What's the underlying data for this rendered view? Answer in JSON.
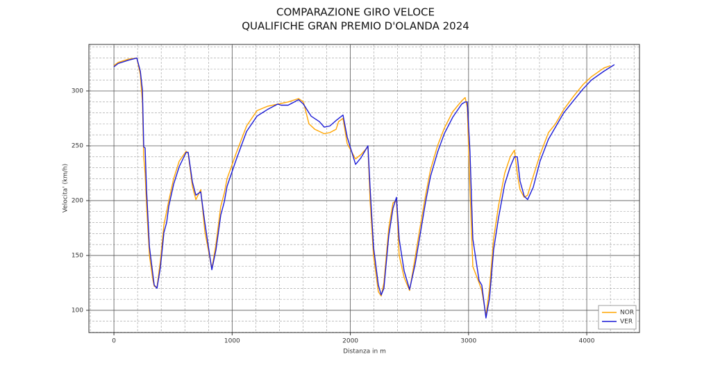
{
  "chart_data": {
    "type": "line",
    "title": "COMPARAZIONE GIRO VELOCE",
    "subtitle": "QUALIFICHE GRAN PREMIO D'OLANDA 2024",
    "xlabel": "Distanza in m",
    "ylabel": "Velocita' (km/h)",
    "xlim": [
      -212,
      4446
    ],
    "ylim": [
      79.7,
      342.4
    ],
    "xticks": [
      0,
      1000,
      2000,
      3000,
      4000
    ],
    "yticks": [
      100,
      150,
      200,
      250,
      300
    ],
    "minor_xticks": [
      -200,
      200,
      400,
      600,
      800,
      1200,
      1400,
      1600,
      1800,
      2200,
      2400,
      2600,
      2800,
      3200,
      3400,
      3600,
      3800,
      4200,
      4400
    ],
    "minor_yticks": [
      80,
      90,
      110,
      120,
      130,
      140,
      160,
      170,
      180,
      190,
      210,
      220,
      230,
      240,
      260,
      270,
      280,
      290,
      310,
      320,
      330,
      340
    ],
    "grid": true,
    "legend": "lower right",
    "series": [
      {
        "name": "NOR",
        "color": "#ffa500",
        "x": [
          0,
          35,
          123,
          194,
          223,
          241,
          252,
          264,
          276,
          300,
          329,
          341,
          364,
          393,
          423,
          446,
          464,
          505,
          552,
          611,
          628,
          664,
          693,
          734,
          769,
          828,
          863,
          904,
          934,
          957,
          1033,
          1122,
          1210,
          1298,
          1386,
          1474,
          1562,
          1603,
          1650,
          1700,
          1779,
          1826,
          1879,
          1900,
          1938,
          1973,
          2044,
          2090,
          2149,
          2167,
          2196,
          2237,
          2261,
          2284,
          2325,
          2361,
          2390,
          2413,
          2455,
          2501,
          2548,
          2584,
          2637,
          2678,
          2737,
          2795,
          2866,
          2942,
          2971,
          2989,
          3012,
          3036,
          3089,
          3112,
          3147,
          3177,
          3212,
          3253,
          3306,
          3353,
          3388,
          3412,
          3435,
          3471,
          3500,
          3547,
          3605,
          3676,
          3735,
          3805,
          3887,
          3970,
          4040,
          4146,
          4200
        ],
        "values": [
          323,
          326,
          329,
          330,
          315,
          290,
          240,
          225,
          195,
          150,
          128,
          122,
          121,
          145,
          178,
          190,
          200,
          220,
          236,
          245,
          243,
          213,
          201,
          210,
          172,
          138,
          160,
          195,
          207,
          220,
          243,
          268,
          282,
          286,
          288,
          290,
          293,
          290,
          270,
          265,
          261,
          262,
          265,
          272,
          275,
          252,
          238,
          242,
          249,
          200,
          150,
          117,
          113,
          125,
          175,
          198,
          200,
          150,
          130,
          118,
          148,
          172,
          205,
          228,
          250,
          266,
          281,
          291,
          294,
          285,
          210,
          140,
          125,
          118,
          95,
          120,
          165,
          195,
          225,
          240,
          246,
          225,
          210,
          203,
          205,
          222,
          242,
          262,
          270,
          283,
          295,
          306,
          313,
          321,
          323
        ]
      },
      {
        "name": "VER",
        "color": "#1a1ad6",
        "x": [
          0,
          35,
          123,
          194,
          223,
          241,
          252,
          264,
          276,
          300,
          329,
          341,
          364,
          393,
          423,
          446,
          464,
          505,
          552,
          611,
          628,
          664,
          693,
          734,
          769,
          828,
          863,
          904,
          934,
          957,
          1033,
          1122,
          1210,
          1298,
          1386,
          1415,
          1474,
          1562,
          1603,
          1668,
          1738,
          1779,
          1826,
          1879,
          1938,
          1973,
          2044,
          2090,
          2149,
          2167,
          2196,
          2237,
          2261,
          2284,
          2325,
          2361,
          2390,
          2413,
          2455,
          2501,
          2548,
          2584,
          2637,
          2678,
          2737,
          2795,
          2866,
          2942,
          2971,
          2989,
          3012,
          3036,
          3089,
          3112,
          3147,
          3177,
          3212,
          3253,
          3306,
          3353,
          3388,
          3412,
          3435,
          3471,
          3500,
          3547,
          3605,
          3676,
          3735,
          3805,
          3887,
          3970,
          4040,
          4146,
          4234
        ],
        "values": [
          322,
          325,
          328,
          330,
          318,
          301,
          249,
          248,
          209,
          158,
          133,
          123,
          120,
          139,
          171,
          180,
          195,
          215,
          231,
          244,
          244,
          217,
          205,
          208,
          180,
          137,
          155,
          187,
          199,
          213,
          237,
          263,
          277,
          283,
          288,
          287,
          287,
          292,
          288,
          277,
          272,
          267,
          268,
          273,
          278,
          258,
          233,
          239,
          250,
          212,
          158,
          123,
          114,
          120,
          168,
          193,
          203,
          165,
          136,
          119,
          142,
          165,
          199,
          222,
          244,
          261,
          276,
          288,
          290,
          290,
          244,
          165,
          127,
          123,
          93,
          111,
          155,
          184,
          215,
          231,
          240,
          240,
          218,
          204,
          201,
          212,
          236,
          256,
          267,
          280,
          291,
          302,
          310,
          318,
          324
        ]
      }
    ]
  }
}
